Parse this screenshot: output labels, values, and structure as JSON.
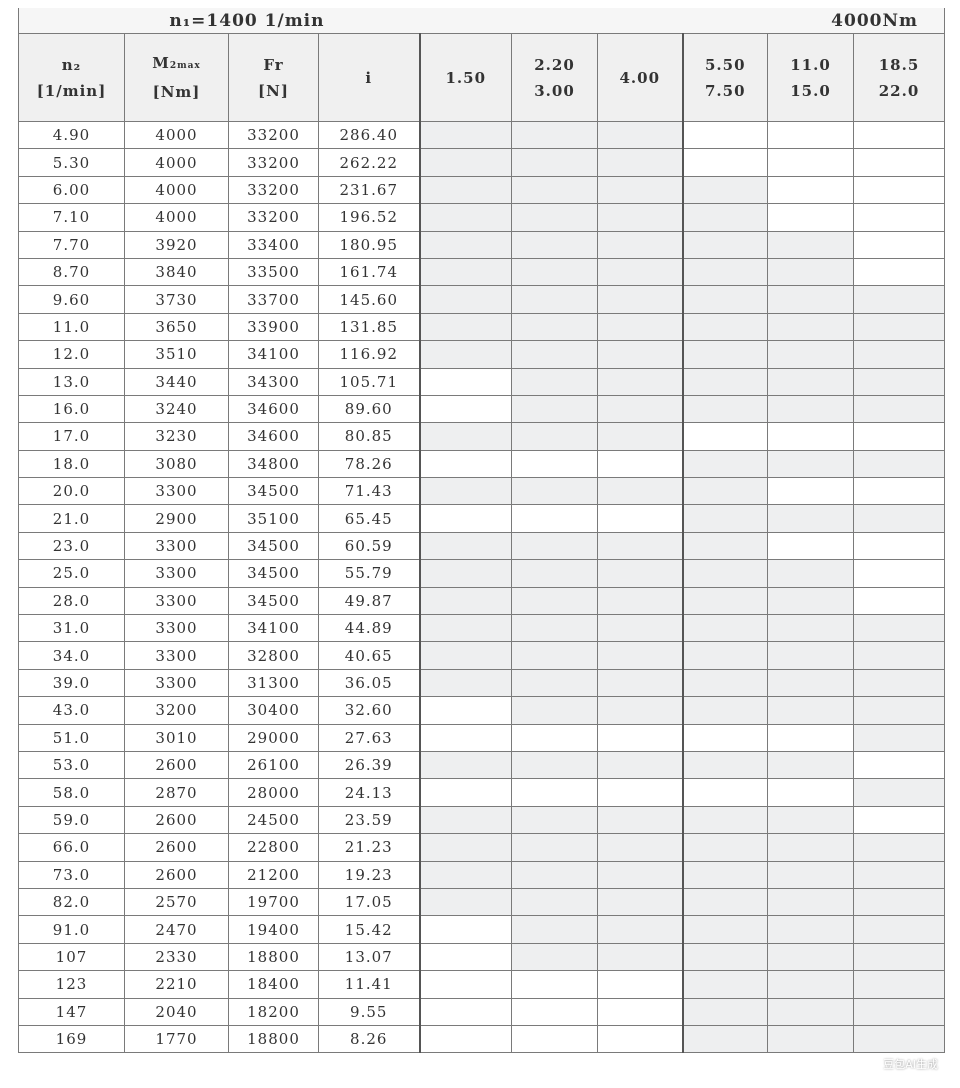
{
  "title": {
    "speed": "n₁=1400 1/min",
    "torque": "4000Nm"
  },
  "headers": {
    "n2": [
      "n₂",
      "[1/min]"
    ],
    "m2max": [
      "M",
      "2max",
      "[Nm]"
    ],
    "fr": [
      "Fr",
      "[N]"
    ],
    "i": "i",
    "power_columns": [
      [
        "1.50"
      ],
      [
        "2.20",
        "3.00"
      ],
      [
        "4.00"
      ],
      [
        "5.50",
        "7.50"
      ],
      [
        "11.0",
        "15.0"
      ],
      [
        "18.5",
        "22.0"
      ]
    ]
  },
  "rows": [
    {
      "n2": "4.90",
      "m2max": "4000",
      "fr": "33200",
      "i": "286.40",
      "shading": "GGGWWW"
    },
    {
      "n2": "5.30",
      "m2max": "4000",
      "fr": "33200",
      "i": "262.22",
      "shading": "GGGWWW"
    },
    {
      "n2": "6.00",
      "m2max": "4000",
      "fr": "33200",
      "i": "231.67",
      "shading": "GGGGWW"
    },
    {
      "n2": "7.10",
      "m2max": "4000",
      "fr": "33200",
      "i": "196.52",
      "shading": "GGGGWW"
    },
    {
      "n2": "7.70",
      "m2max": "3920",
      "fr": "33400",
      "i": "180.95",
      "shading": "GGGGGW"
    },
    {
      "n2": "8.70",
      "m2max": "3840",
      "fr": "33500",
      "i": "161.74",
      "shading": "GGGGGW"
    },
    {
      "n2": "9.60",
      "m2max": "3730",
      "fr": "33700",
      "i": "145.60",
      "shading": "GGGGGG"
    },
    {
      "n2": "11.0",
      "m2max": "3650",
      "fr": "33900",
      "i": "131.85",
      "shading": "GGGGGG"
    },
    {
      "n2": "12.0",
      "m2max": "3510",
      "fr": "34100",
      "i": "116.92",
      "shading": "GGGGGG"
    },
    {
      "n2": "13.0",
      "m2max": "3440",
      "fr": "34300",
      "i": "105.71",
      "shading": "WGGGGG"
    },
    {
      "n2": "16.0",
      "m2max": "3240",
      "fr": "34600",
      "i": "89.60",
      "shading": "WGGGGG"
    },
    {
      "n2": "17.0",
      "m2max": "3230",
      "fr": "34600",
      "i": "80.85",
      "shading": "GGGWWW"
    },
    {
      "n2": "18.0",
      "m2max": "3080",
      "fr": "34800",
      "i": "78.26",
      "shading": "WWWGGG"
    },
    {
      "n2": "20.0",
      "m2max": "3300",
      "fr": "34500",
      "i": "71.43",
      "shading": "GGGGWW"
    },
    {
      "n2": "21.0",
      "m2max": "2900",
      "fr": "35100",
      "i": "65.45",
      "shading": "WWWGGG"
    },
    {
      "n2": "23.0",
      "m2max": "3300",
      "fr": "34500",
      "i": "60.59",
      "shading": "GGGGWW"
    },
    {
      "n2": "25.0",
      "m2max": "3300",
      "fr": "34500",
      "i": "55.79",
      "shading": "GGGGGW"
    },
    {
      "n2": "28.0",
      "m2max": "3300",
      "fr": "34500",
      "i": "49.87",
      "shading": "GGGGGW"
    },
    {
      "n2": "31.0",
      "m2max": "3300",
      "fr": "34100",
      "i": "44.89",
      "shading": "GGGGGG"
    },
    {
      "n2": "34.0",
      "m2max": "3300",
      "fr": "32800",
      "i": "40.65",
      "shading": "GGGGGG"
    },
    {
      "n2": "39.0",
      "m2max": "3300",
      "fr": "31300",
      "i": "36.05",
      "shading": "GGGGGG"
    },
    {
      "n2": "43.0",
      "m2max": "3200",
      "fr": "30400",
      "i": "32.60",
      "shading": "WGGGGG"
    },
    {
      "n2": "51.0",
      "m2max": "3010",
      "fr": "29000",
      "i": "27.63",
      "shading": "WWWWWG"
    },
    {
      "n2": "53.0",
      "m2max": "2600",
      "fr": "26100",
      "i": "26.39",
      "shading": "GGGGGW"
    },
    {
      "n2": "58.0",
      "m2max": "2870",
      "fr": "28000",
      "i": "24.13",
      "shading": "WWWWWG"
    },
    {
      "n2": "59.0",
      "m2max": "2600",
      "fr": "24500",
      "i": "23.59",
      "shading": "GGGGGW"
    },
    {
      "n2": "66.0",
      "m2max": "2600",
      "fr": "22800",
      "i": "21.23",
      "shading": "GGGGGG"
    },
    {
      "n2": "73.0",
      "m2max": "2600",
      "fr": "21200",
      "i": "19.23",
      "shading": "GGGGGG"
    },
    {
      "n2": "82.0",
      "m2max": "2570",
      "fr": "19700",
      "i": "17.05",
      "shading": "GGGGGG"
    },
    {
      "n2": "91.0",
      "m2max": "2470",
      "fr": "19400",
      "i": "15.42",
      "shading": "WGGGGG"
    },
    {
      "n2": "107",
      "m2max": "2330",
      "fr": "18800",
      "i": "13.07",
      "shading": "WGGGGG"
    },
    {
      "n2": "123",
      "m2max": "2210",
      "fr": "18400",
      "i": "11.41",
      "shading": "WWWGGG"
    },
    {
      "n2": "147",
      "m2max": "2040",
      "fr": "18200",
      "i": "9.55",
      "shading": "WWWGGG"
    },
    {
      "n2": "169",
      "m2max": "1770",
      "fr": "18800",
      "i": "8.26",
      "shading": "WWWGGG"
    }
  ],
  "colors": {
    "shaded_cell": "#eeeff0",
    "unshaded_cell": "#ffffff",
    "grid": "#7a7a7a"
  },
  "watermark": "豆包AI生成"
}
